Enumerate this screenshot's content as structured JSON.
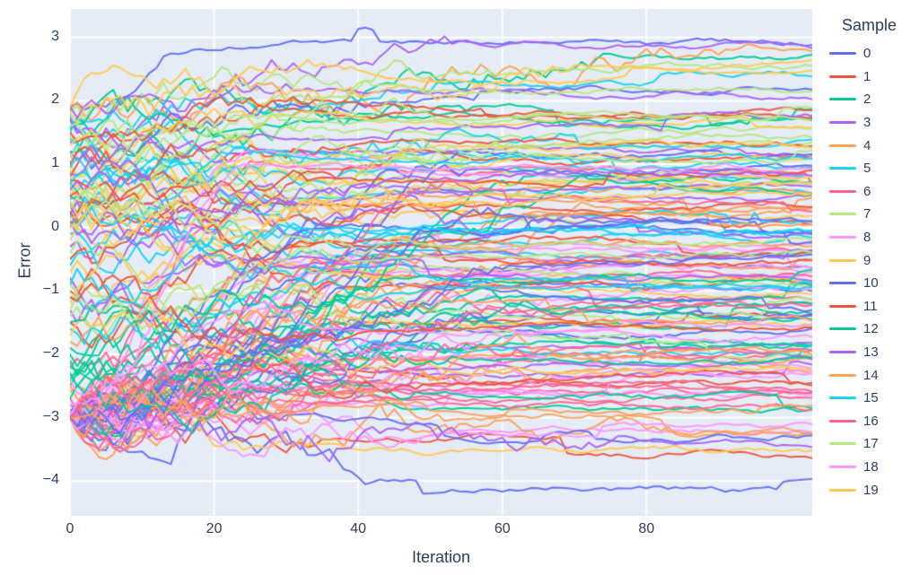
{
  "chart_data": {
    "type": "line",
    "title": "",
    "xlabel": "Iteration",
    "ylabel": "Error",
    "legend_title": "Sample",
    "legend_entries": [
      "0",
      "1",
      "2",
      "3",
      "4",
      "5",
      "6",
      "7",
      "8",
      "9",
      "10",
      "11",
      "12",
      "13",
      "14",
      "15",
      "16",
      "17",
      "18",
      "19"
    ],
    "legend_position": "right",
    "palette": [
      "#636EFA",
      "#EF553B",
      "#00CC96",
      "#AB63FA",
      "#FFA15A",
      "#19D3F3",
      "#FF6692",
      "#B6E880",
      "#FF97FF",
      "#FECB52"
    ],
    "plot_bg": "#E5ECF6",
    "grid_color": "#FFFFFF",
    "label_color": "#2A3F5F",
    "grid": true,
    "xlim": [
      0,
      103
    ],
    "ylim": [
      -4.55,
      3.45
    ],
    "xticks": [
      0,
      20,
      40,
      60,
      80
    ],
    "yticks": [
      -4,
      -3,
      -2,
      -1,
      0,
      1,
      2,
      3
    ],
    "x_points": 104,
    "series_compact_format": "[start_error, final_error, settle_iteration]; trace i uses palette[i % 10]",
    "series": [
      [
        1.9,
        2.92,
        14
      ],
      [
        -3,
        -3.35,
        38
      ],
      [
        1.6,
        2.65,
        75
      ],
      [
        1.7,
        2.85,
        55
      ],
      [
        1.85,
        2.75,
        95
      ],
      [
        1.75,
        1.95,
        30
      ],
      [
        -3,
        -2.6,
        25
      ],
      [
        1.8,
        2.55,
        60
      ],
      [
        -3,
        -3.2,
        50
      ],
      [
        1.9,
        2.3,
        40
      ],
      [
        -3,
        -3.92,
        45
      ],
      [
        -3,
        -2.35,
        33
      ],
      [
        1.55,
        1.7,
        22
      ],
      [
        -3,
        -1.9,
        41
      ],
      [
        -3,
        -3.3,
        85
      ],
      [
        1.5,
        1.15,
        28
      ],
      [
        -2.2,
        -2.05,
        35
      ],
      [
        1.45,
        0.9,
        47
      ],
      [
        -3,
        -0.3,
        52
      ],
      [
        -3,
        -3.55,
        30
      ],
      [
        1.35,
        2.05,
        44
      ],
      [
        -3,
        -1.45,
        36
      ],
      [
        1.2,
        1.85,
        58
      ],
      [
        -2.8,
        -2.5,
        27
      ],
      [
        -3,
        0.45,
        49
      ],
      [
        1.1,
        0.6,
        31
      ],
      [
        -3,
        -1.1,
        62
      ],
      [
        0.9,
        1.5,
        39
      ],
      [
        -3,
        -2.8,
        24
      ],
      [
        1.0,
        0.2,
        53
      ],
      [
        -3,
        -0.85,
        46
      ],
      [
        0.8,
        1.75,
        29
      ],
      [
        -2.5,
        -1.6,
        57
      ],
      [
        1.9,
        2.1,
        34
      ],
      [
        -3,
        -2.15,
        68
      ],
      [
        0.7,
        -0.1,
        42
      ],
      [
        -3,
        0.9,
        26
      ],
      [
        0.6,
        1.3,
        61
      ],
      [
        -3,
        -0.55,
        37
      ],
      [
        1.8,
        2.45,
        72
      ],
      [
        -2.9,
        -3.1,
        32
      ],
      [
        0.5,
        1.05,
        48
      ],
      [
        -3,
        -1.75,
        55
      ],
      [
        1.7,
        1.25,
        23
      ],
      [
        -3,
        0.15,
        64
      ],
      [
        0.4,
        -0.4,
        38
      ],
      [
        -2.7,
        -2.25,
        51
      ],
      [
        1.6,
        2.2,
        43
      ],
      [
        -3,
        -0.95,
        70
      ],
      [
        0.3,
        0.75,
        28
      ],
      [
        -3,
        -1.3,
        58
      ],
      [
        1.5,
        1.9,
        35
      ],
      [
        -2.4,
        -2.9,
        47
      ],
      [
        0.2,
        -0.65,
        30
      ],
      [
        -3,
        0.6,
        66
      ],
      [
        1.4,
        0.95,
        41
      ],
      [
        -3,
        -2.45,
        25
      ],
      [
        0.1,
        0.5,
        54
      ],
      [
        -3,
        -0.15,
        45
      ],
      [
        1.3,
        1.65,
        33
      ],
      [
        -3,
        -1.55,
        61
      ],
      [
        0,
        -0.9,
        39
      ],
      [
        -2.2,
        -1.2,
        50
      ],
      [
        1.2,
        1.45,
        27
      ],
      [
        -3,
        0.3,
        73
      ],
      [
        -0.1,
        0.05,
        44
      ],
      [
        -3,
        -2.7,
        31
      ],
      [
        1.1,
        1.8,
        59
      ],
      [
        -3,
        -0.7,
        36
      ],
      [
        -0.2,
        -1.05,
        48
      ],
      [
        -3,
        1.1,
        56
      ],
      [
        1.0,
        0.35,
        29
      ],
      [
        -2.0,
        -1.85,
        63
      ],
      [
        -0.3,
        0.65,
        42
      ],
      [
        -3,
        -2.05,
        34
      ],
      [
        0.95,
        1.55,
        69
      ],
      [
        -3,
        -0.4,
        46
      ],
      [
        -0.4,
        -1.35,
        52
      ],
      [
        -2.9,
        -2.55,
        26
      ],
      [
        0.9,
        1.15,
        60
      ],
      [
        -3,
        -1.65,
        37
      ],
      [
        -0.5,
        0.1,
        49
      ],
      [
        -3,
        0.75,
        65
      ],
      [
        0.85,
        0.45,
        32
      ],
      [
        -2.6,
        -3.05,
        54
      ],
      [
        -0.6,
        -0.25,
        40
      ],
      [
        -3,
        -1.0,
        58
      ],
      [
        0.8,
        1.7,
        28
      ],
      [
        -3,
        -2.3,
        71
      ],
      [
        -0.7,
        -1.5,
        45
      ],
      [
        -3,
        0.0,
        53
      ],
      [
        0.75,
        1.35,
        38
      ],
      [
        -2.3,
        -1.4,
        62
      ],
      [
        -0.8,
        -0.5,
        30
      ],
      [
        -3,
        -0.6,
        67
      ],
      [
        0.7,
        0.25,
        47
      ],
      [
        -3,
        -2.85,
        35
      ],
      [
        -0.9,
        -1.7,
        56
      ],
      [
        -3,
        1.0,
        25
      ],
      [
        0.65,
        1.25,
        43
      ],
      [
        -3,
        -1.15,
        59
      ],
      [
        -1.0,
        -0.35,
        33
      ],
      [
        -2.1,
        -2.65,
        49
      ],
      [
        0.6,
        0.05,
        70
      ],
      [
        -3,
        0.4,
        41
      ],
      [
        -1.1,
        -1.9,
        55
      ],
      [
        -3,
        -0.75,
        28
      ],
      [
        0.55,
        1.45,
        64
      ],
      [
        -3,
        -2.0,
        46
      ],
      [
        -1.2,
        -0.8,
        36
      ],
      [
        -3,
        0.85,
        57
      ],
      [
        0.5,
        -0.2,
        31
      ],
      [
        -1.9,
        -1.25,
        66
      ],
      [
        -1.3,
        -2.1,
        44
      ],
      [
        -3,
        -0.25,
        52
      ],
      [
        0.45,
        1.05,
        26
      ],
      [
        -3,
        -1.8,
        68
      ],
      [
        -1.4,
        -0.65,
        39
      ],
      [
        -2.8,
        -3.25,
        48
      ],
      [
        0.4,
        0.8,
        61
      ],
      [
        -3,
        -0.05,
        34
      ],
      [
        -1.5,
        -2.4,
        50
      ],
      [
        -3,
        0.55,
        72
      ],
      [
        0.35,
        -0.55,
        29
      ],
      [
        -1.8,
        -1.05,
        58
      ],
      [
        -1.6,
        -0.95,
        42
      ],
      [
        -3,
        -2.55,
        37
      ],
      [
        0.3,
        1.0,
        65
      ],
      [
        -3,
        -1.45,
        27
      ],
      [
        -1.7,
        -2.2,
        53
      ],
      [
        -3,
        0.2,
        60
      ],
      [
        0.25,
        0.7,
        35
      ],
      [
        -1.5,
        -0.85,
        47
      ],
      [
        -3,
        -3.4,
        78
      ],
      [
        -2.5,
        -2.75,
        32
      ],
      [
        0.2,
        -0.75,
        56
      ],
      [
        -3,
        -1.25,
        69
      ],
      [
        -1.3,
        -0.45,
        40
      ],
      [
        -3,
        0.95,
        24
      ],
      [
        0.15,
        0.55,
        51
      ],
      [
        -3,
        -0.5,
        63
      ],
      [
        -1.1,
        -1.55,
        38
      ],
      [
        -2.7,
        -2.1,
        54
      ],
      [
        0.1,
        0.85,
        45
      ],
      [
        -3,
        -1.95,
        76
      ],
      [
        -0.9,
        -0.05,
        30
      ],
      [
        -3,
        0.65,
        58
      ],
      [
        0.05,
        -0.3,
        49
      ],
      [
        -2.4,
        -1.7,
        67
      ],
      [
        0,
        0.4,
        42
      ]
    ]
  }
}
